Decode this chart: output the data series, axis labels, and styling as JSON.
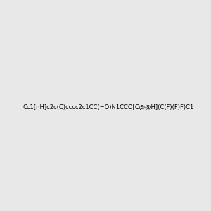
{
  "smiles": "Cc1[nH]c2c(C)cccc2c1CC(=O)N1CCO[C@@H](C(F)(F)F)C1",
  "title": "",
  "img_size": [
    300,
    300
  ],
  "background_color": "#e8e8e8",
  "atom_colors": {
    "N": "#0000ff",
    "O": "#ff0000",
    "F": "#ff00ff"
  }
}
